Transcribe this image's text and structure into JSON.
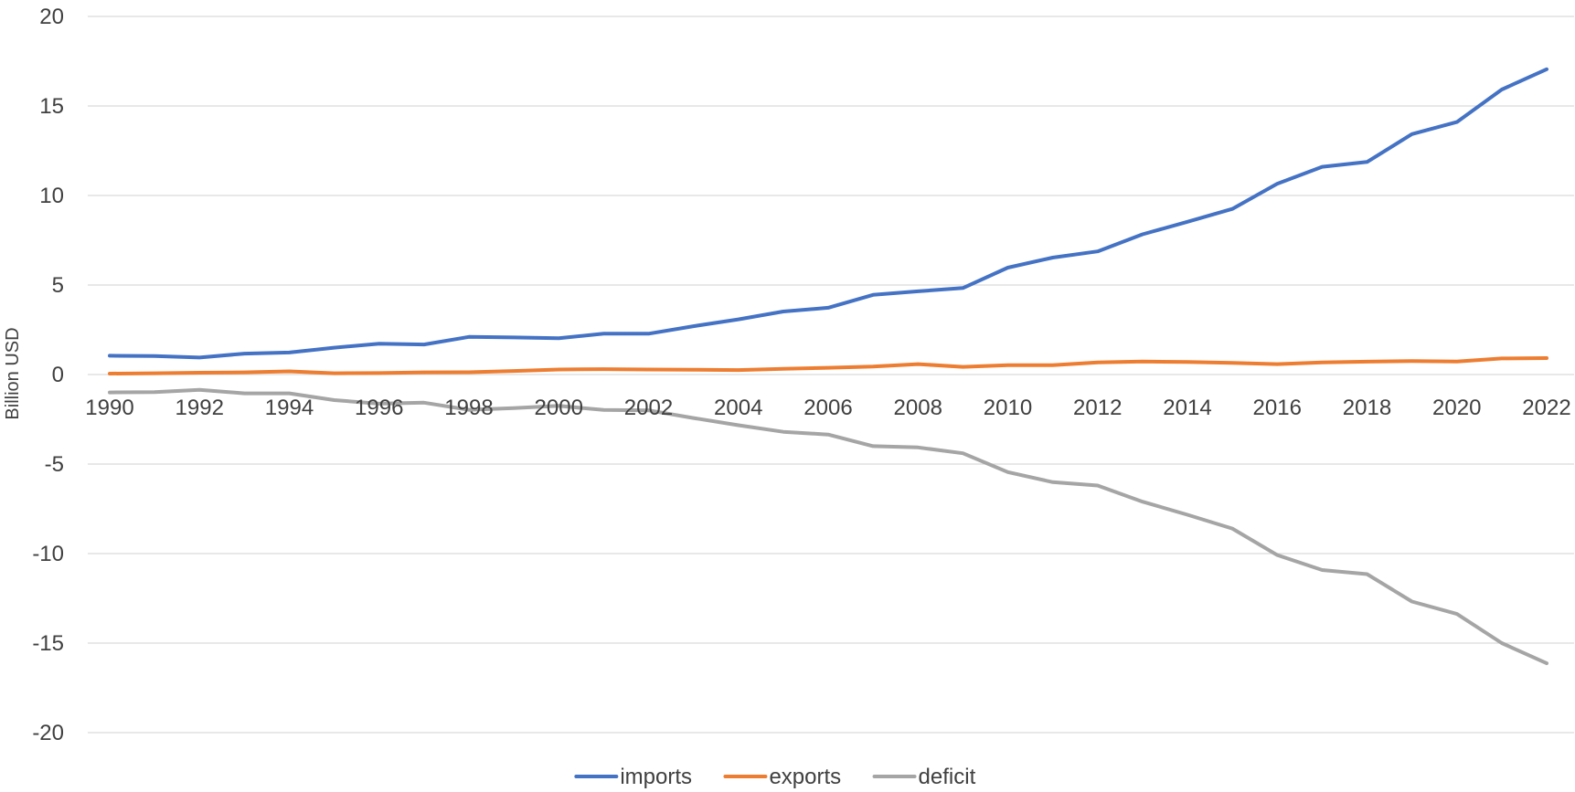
{
  "chart_data": {
    "type": "line",
    "title": "",
    "xlabel": "",
    "ylabel": "Billion USD",
    "ylim": [
      -20,
      20
    ],
    "yticks": [
      -20,
      -15,
      -10,
      -5,
      0,
      5,
      10,
      15,
      20
    ],
    "x": [
      1990,
      1991,
      1992,
      1993,
      1994,
      1995,
      1996,
      1997,
      1998,
      1999,
      2000,
      2001,
      2002,
      2003,
      2004,
      2005,
      2006,
      2007,
      2008,
      2009,
      2010,
      2011,
      2012,
      2013,
      2014,
      2015,
      2016,
      2017,
      2018,
      2019,
      2020,
      2021,
      2022
    ],
    "xtick_labels": [
      "1990",
      "1992",
      "1994",
      "1996",
      "1998",
      "2000",
      "2002",
      "2004",
      "2006",
      "2008",
      "2010",
      "2012",
      "2014",
      "2016",
      "2018",
      "2020",
      "2022"
    ],
    "grid": true,
    "legend_position": "bottom",
    "series": [
      {
        "name": "imports",
        "color": "#4472c4",
        "values": [
          1.05,
          1.03,
          0.95,
          1.17,
          1.23,
          1.5,
          1.72,
          1.68,
          2.1,
          2.07,
          2.03,
          2.28,
          2.28,
          2.7,
          3.08,
          3.52,
          3.73,
          4.45,
          4.65,
          4.83,
          5.97,
          6.53,
          6.88,
          7.83,
          8.53,
          9.25,
          10.66,
          11.6,
          11.87,
          13.43,
          14.1,
          15.92,
          17.05
        ]
      },
      {
        "name": "exports",
        "color": "#ed7d31",
        "values": [
          0.05,
          0.07,
          0.1,
          0.12,
          0.18,
          0.07,
          0.08,
          0.12,
          0.13,
          0.2,
          0.28,
          0.3,
          0.28,
          0.27,
          0.25,
          0.32,
          0.38,
          0.45,
          0.58,
          0.43,
          0.52,
          0.52,
          0.68,
          0.73,
          0.7,
          0.65,
          0.58,
          0.68,
          0.72,
          0.75,
          0.73,
          0.9,
          0.92
        ]
      },
      {
        "name": "deficit",
        "color": "#a5a5a5",
        "values": [
          -1.0,
          -0.98,
          -0.85,
          -1.05,
          -1.05,
          -1.43,
          -1.63,
          -1.57,
          -1.97,
          -1.87,
          -1.75,
          -1.98,
          -2.0,
          -2.43,
          -2.83,
          -3.2,
          -3.35,
          -4.0,
          -4.07,
          -4.4,
          -5.45,
          -6.01,
          -6.2,
          -7.1,
          -7.83,
          -8.6,
          -10.08,
          -10.92,
          -11.15,
          -12.68,
          -13.37,
          -15.0,
          -16.13
        ]
      }
    ]
  }
}
